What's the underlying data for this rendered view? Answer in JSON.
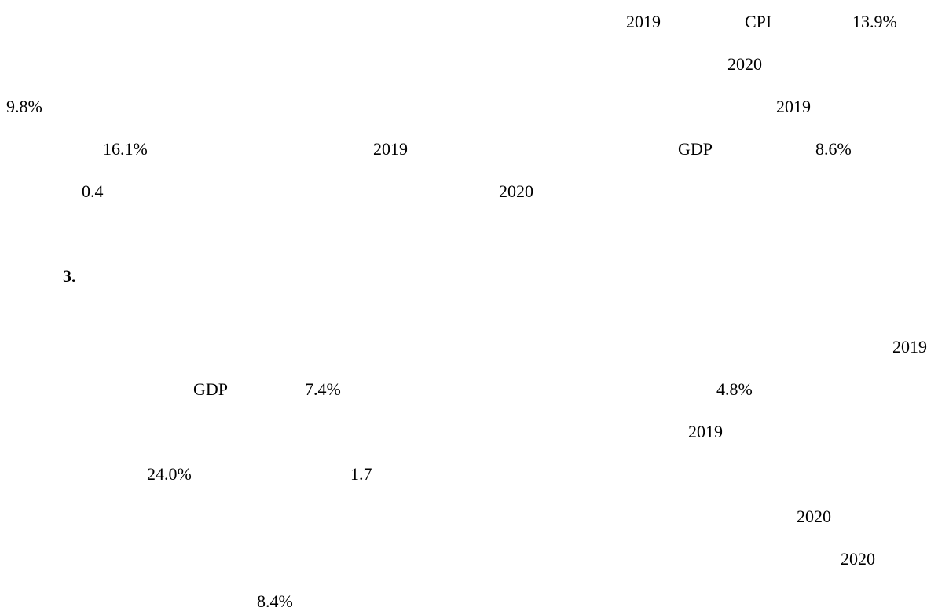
{
  "lines": [
    [
      "2019",
      "CPI",
      "13.9%"
    ],
    [
      "2020"
    ],
    [
      "9.8%",
      "2019"
    ],
    [
      "16.1%",
      "2019",
      "GDP",
      "8.6%"
    ],
    [
      "0.4",
      "2020"
    ],
    [
      "3."
    ],
    [
      "2019"
    ],
    [
      "GDP",
      "7.4%",
      "4.8%"
    ],
    [
      "2019"
    ],
    [
      "24.0%",
      "1.7"
    ],
    [
      "2020"
    ],
    [
      "2020"
    ],
    [
      "8.4%"
    ]
  ]
}
